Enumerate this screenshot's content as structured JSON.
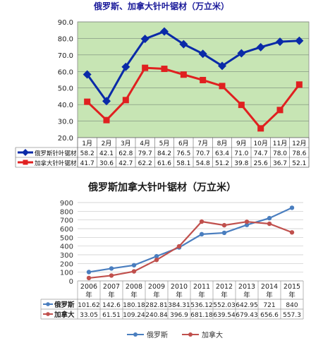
{
  "chart_data": [
    {
      "type": "line",
      "title": "俄罗斯、加拿大针叶锯材（万立米）",
      "categories": [
        "1月",
        "2月",
        "3月",
        "4月",
        "5月",
        "6月",
        "7月",
        "8月",
        "9月",
        "10月",
        "11月",
        "12月"
      ],
      "ylim": [
        20,
        90
      ],
      "yticks": [
        "20.0",
        "30.0",
        "40.0",
        "50.0",
        "60.0",
        "70.0",
        "80.0",
        "90.0"
      ],
      "background": "#c7e5b4",
      "series": [
        {
          "name": "俄罗斯针叶锯材",
          "color": "#0a2aa8",
          "marker": "diamond",
          "values": [
            58.2,
            42.1,
            62.8,
            79.7,
            84.2,
            76.5,
            70.7,
            63.4,
            71.0,
            74.7,
            78.0,
            78.6
          ],
          "labels": [
            "58.2",
            "42.1",
            "62.8",
            "79.7",
            "84.2",
            "76.5",
            "70.7",
            "63.4",
            "71.0",
            "74.7",
            "78.0",
            "78.6"
          ]
        },
        {
          "name": "加拿大针叶锯材",
          "color": "#e02020",
          "marker": "square",
          "values": [
            41.7,
            30.6,
            42.7,
            62.2,
            61.6,
            58.1,
            54.8,
            51.2,
            39.8,
            25.6,
            36.7,
            52.1
          ],
          "labels": [
            "41.7",
            "30.6",
            "42.7",
            "62.2",
            "61.6",
            "58.1",
            "54.8",
            "51.2",
            "39.8",
            "25.6",
            "36.7",
            "52.1"
          ]
        }
      ]
    },
    {
      "type": "line",
      "title": "俄罗斯加拿大针叶锯材（万立米）",
      "categories": [
        "2006",
        "2007",
        "2008",
        "2009",
        "2010",
        "2011",
        "2012",
        "2013",
        "2014",
        "2015"
      ],
      "unit": "年",
      "ylim": [
        0,
        900
      ],
      "yticks": [
        "0",
        "100",
        "200",
        "300",
        "400",
        "500",
        "600",
        "700",
        "800",
        "900"
      ],
      "series": [
        {
          "name": "俄罗斯",
          "color": "#4a7ebf",
          "values": [
            101.62,
            142.6,
            180.18,
            282.81,
            384.31,
            536.12,
            552.03,
            642.95,
            721,
            840
          ],
          "labels": [
            "101.62",
            "142.6",
            "180.18",
            "282.81",
            "384.31",
            "536.12",
            "552.03",
            "642.95",
            "721",
            "840"
          ]
        },
        {
          "name": "加拿大",
          "color": "#c0504d",
          "values": [
            33.05,
            61.51,
            109.24,
            240.84,
            396.9,
            681.18,
            639.54,
            679.43,
            656.6,
            557.3
          ],
          "labels": [
            "33.05",
            "61.51",
            "109.24",
            "240.84",
            "396.9",
            "681.18",
            "639.54",
            "679.43",
            "656.6",
            "557.3"
          ]
        }
      ]
    }
  ]
}
